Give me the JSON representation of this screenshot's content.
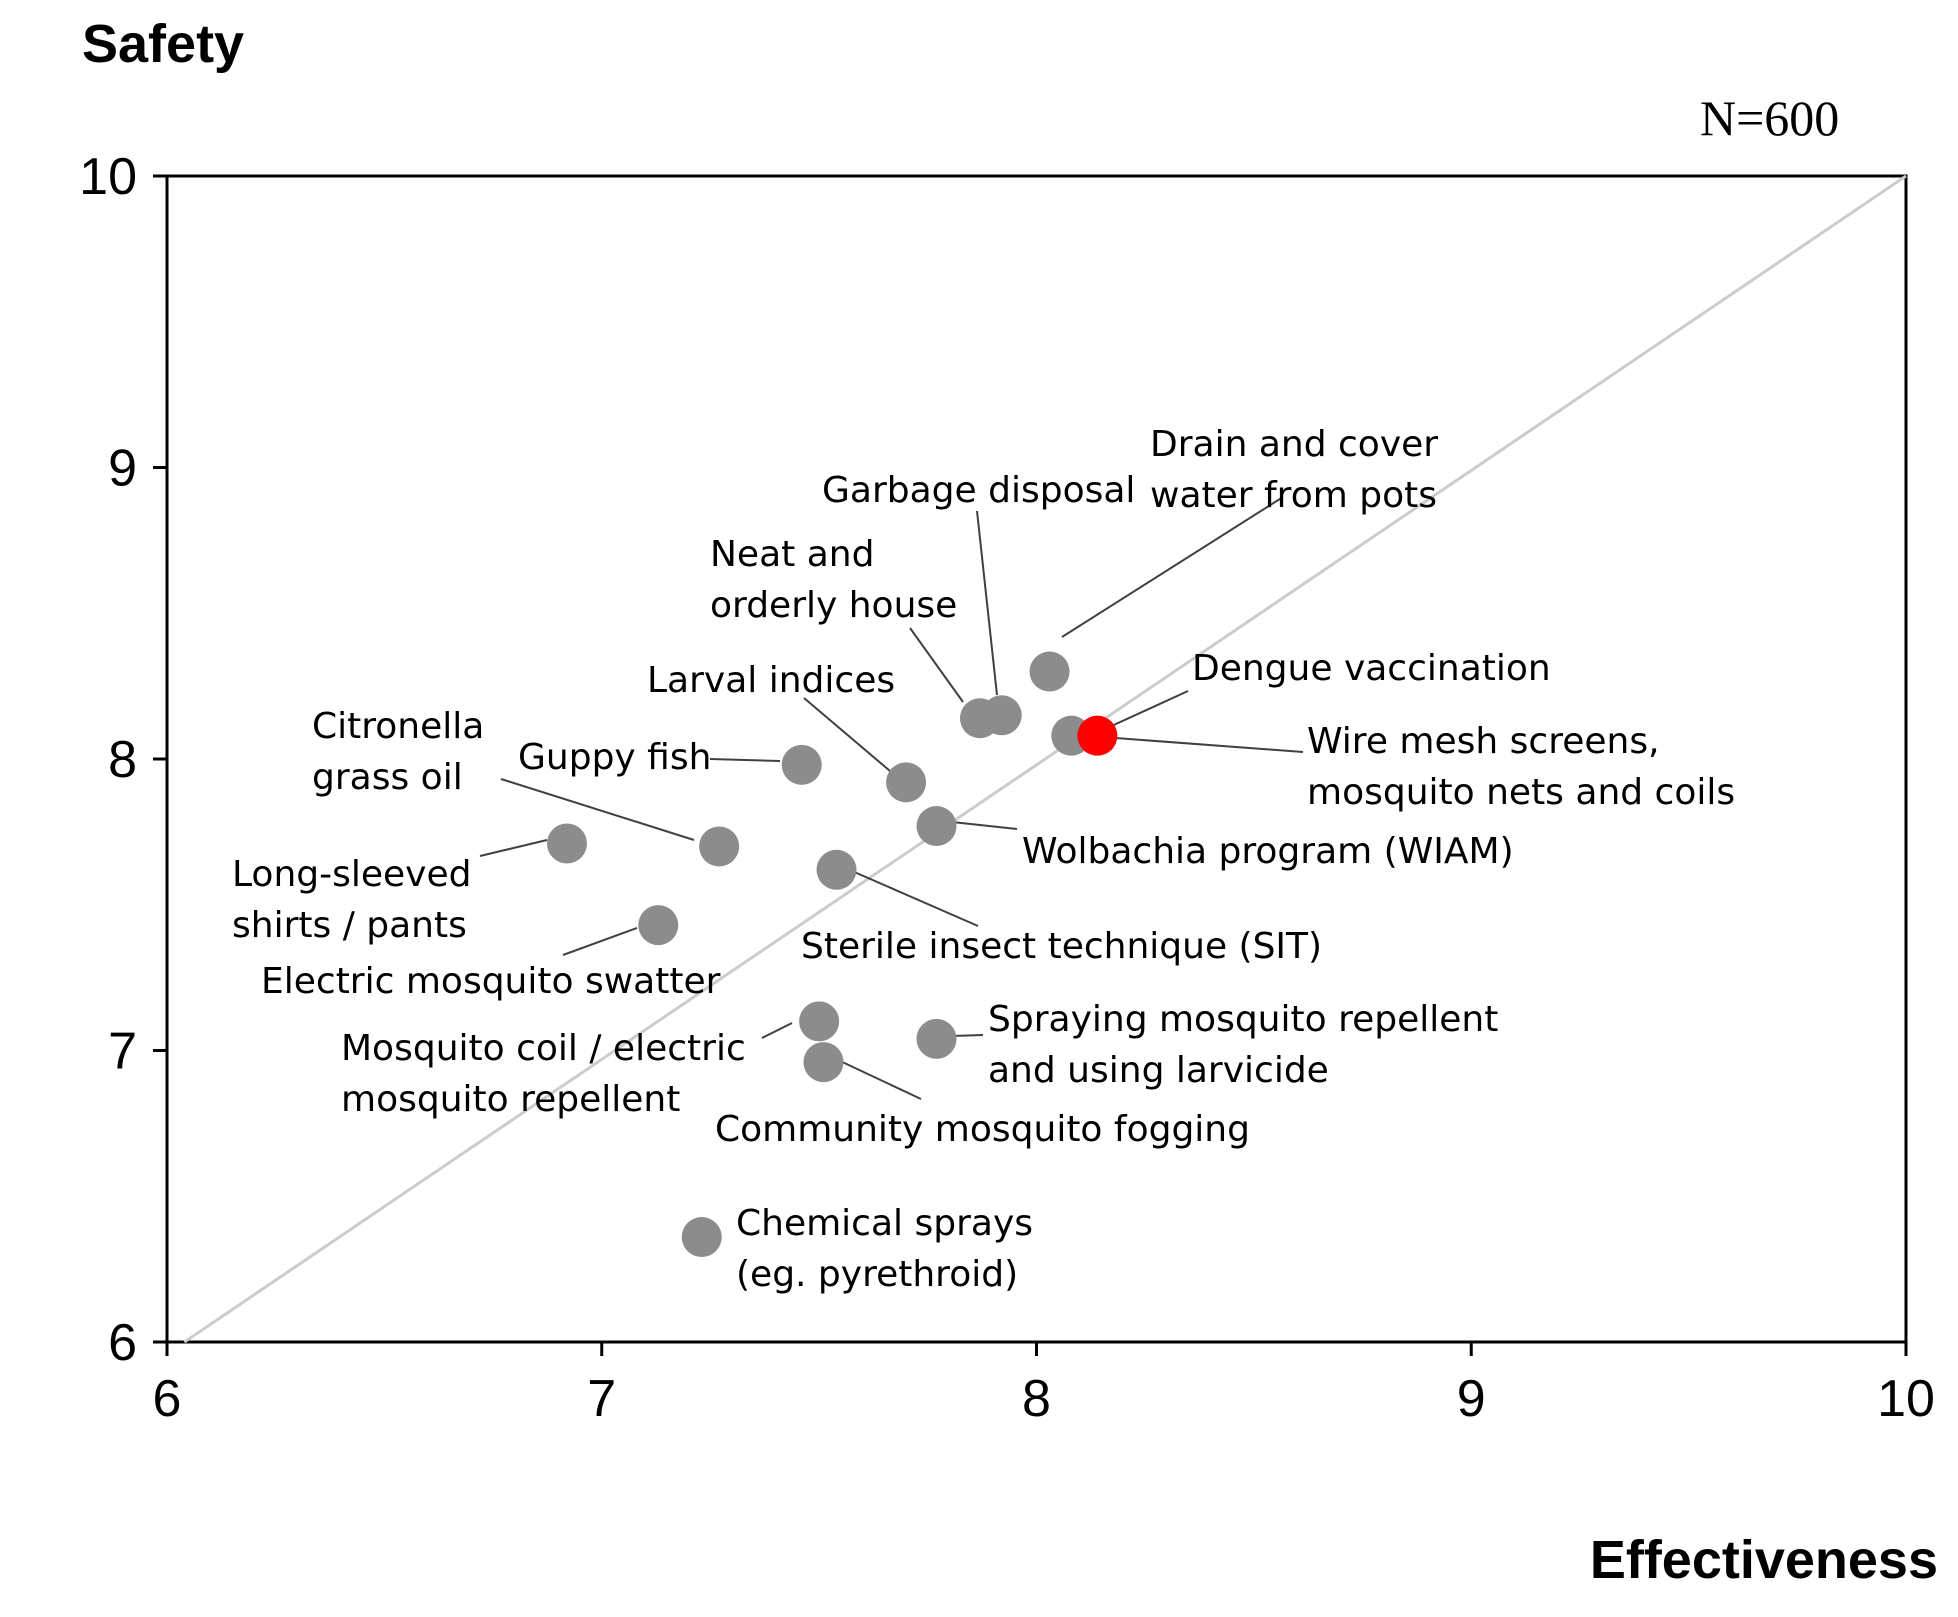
{
  "chart_data": {
    "type": "scatter",
    "ylabel": "Safety",
    "xlabel": "Effectiveness",
    "annotation": "N=600",
    "xlim": [
      6,
      10
    ],
    "ylim": [
      6,
      10
    ],
    "xticks": [
      "6",
      "7",
      "8",
      "9",
      "10"
    ],
    "yticks": [
      "6",
      "7",
      "8",
      "9",
      "10"
    ],
    "reference_line": "diagonal y = x",
    "colors": {
      "point": "#8c8c8c",
      "highlight": "#ff0000",
      "diagonal": "#cccccc",
      "leader": "#404040",
      "axis": "#000000"
    },
    "points": [
      {
        "lines": [
          "Drain and cover",
          "water from pots"
        ],
        "x": 8.03,
        "y": 8.3,
        "highlight": false
      },
      {
        "lines": [
          "Garbage disposal"
        ],
        "x": 7.92,
        "y": 8.15,
        "highlight": false
      },
      {
        "lines": [
          "Neat and",
          "orderly house"
        ],
        "x": 7.87,
        "y": 8.14,
        "highlight": false
      },
      {
        "lines": [
          "Dengue vaccination"
        ],
        "x": 8.14,
        "y": 8.08,
        "highlight": true
      },
      {
        "lines": [
          "Wire mesh screens,",
          "mosquito nets and coils"
        ],
        "x": 8.08,
        "y": 8.08,
        "highlight": false
      },
      {
        "lines": [
          "Larval indices"
        ],
        "x": 7.7,
        "y": 7.92,
        "highlight": false
      },
      {
        "lines": [
          "Guppy fish"
        ],
        "x": 7.46,
        "y": 7.98,
        "highlight": false
      },
      {
        "lines": [
          "Wolbachia program (WIAM)"
        ],
        "x": 7.77,
        "y": 7.77,
        "highlight": false
      },
      {
        "lines": [
          "Citronella",
          "grass oil"
        ],
        "x": 7.27,
        "y": 7.7,
        "highlight": false
      },
      {
        "lines": [
          "Long-sleeved",
          "shirts / pants"
        ],
        "x": 6.92,
        "y": 7.71,
        "highlight": false
      },
      {
        "lines": [
          "Sterile insect technique (SIT)"
        ],
        "x": 7.54,
        "y": 7.62,
        "highlight": false
      },
      {
        "lines": [
          "Electric mosquito swatter"
        ],
        "x": 7.13,
        "y": 7.43,
        "highlight": false
      },
      {
        "lines": [
          "Mosquito coil / electric",
          "mosquito repellent"
        ],
        "x": 7.5,
        "y": 7.1,
        "highlight": false
      },
      {
        "lines": [
          "Spraying mosquito repellent",
          "and using larvicide"
        ],
        "x": 7.77,
        "y": 7.04,
        "highlight": false
      },
      {
        "lines": [
          "Community mosquito fogging"
        ],
        "x": 7.51,
        "y": 6.96,
        "highlight": false
      },
      {
        "lines": [
          "Chemical sprays",
          "(eg. pyrethroid)"
        ],
        "x": 7.23,
        "y": 6.36,
        "highlight": false
      }
    ]
  }
}
